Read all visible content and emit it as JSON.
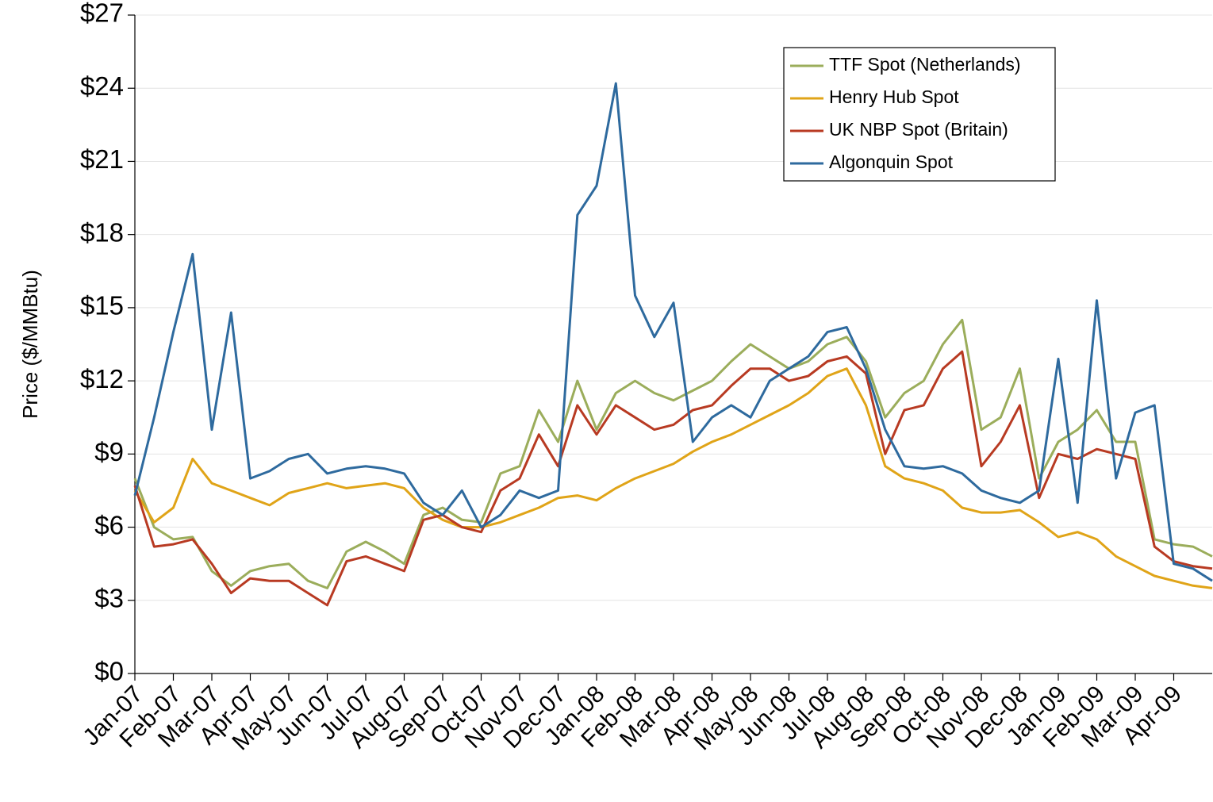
{
  "chart_data": {
    "type": "line",
    "y_label": "Price ($/MMBtu)",
    "x": [
      0,
      0.5,
      1,
      1.5,
      2,
      2.5,
      3,
      3.5,
      4,
      4.5,
      5,
      5.5,
      6,
      6.5,
      7,
      7.5,
      8,
      8.5,
      9,
      9.5,
      10,
      10.5,
      11,
      11.5,
      12,
      12.5,
      13,
      13.5,
      14,
      14.5,
      15,
      15.5,
      16,
      16.5,
      17,
      17.5,
      18,
      18.5,
      19,
      19.5,
      20,
      20.5,
      21,
      21.5,
      22,
      22.5,
      23,
      23.5,
      24,
      24.5,
      25,
      25.5,
      26,
      26.5,
      27,
      27.5,
      28
    ],
    "xlim": [
      0,
      28
    ],
    "xticks": [
      {
        "value": 0,
        "label": "Jan-07"
      },
      {
        "value": 1,
        "label": "Feb-07"
      },
      {
        "value": 2,
        "label": "Mar-07"
      },
      {
        "value": 3,
        "label": "Apr-07"
      },
      {
        "value": 4,
        "label": "May-07"
      },
      {
        "value": 5,
        "label": "Jun-07"
      },
      {
        "value": 6,
        "label": "Jul-07"
      },
      {
        "value": 7,
        "label": "Aug-07"
      },
      {
        "value": 8,
        "label": "Sep-07"
      },
      {
        "value": 9,
        "label": "Oct-07"
      },
      {
        "value": 10,
        "label": "Nov-07"
      },
      {
        "value": 11,
        "label": "Dec-07"
      },
      {
        "value": 12,
        "label": "Jan-08"
      },
      {
        "value": 13,
        "label": "Feb-08"
      },
      {
        "value": 14,
        "label": "Mar-08"
      },
      {
        "value": 15,
        "label": "Apr-08"
      },
      {
        "value": 16,
        "label": "May-08"
      },
      {
        "value": 17,
        "label": "Jun-08"
      },
      {
        "value": 18,
        "label": "Jul-08"
      },
      {
        "value": 19,
        "label": "Aug-08"
      },
      {
        "value": 20,
        "label": "Sep-08"
      },
      {
        "value": 21,
        "label": "Oct-08"
      },
      {
        "value": 22,
        "label": "Nov-08"
      },
      {
        "value": 23,
        "label": "Dec-08"
      },
      {
        "value": 24,
        "label": "Jan-09"
      },
      {
        "value": 25,
        "label": "Feb-09"
      },
      {
        "value": 26,
        "label": "Mar-09"
      },
      {
        "value": 27,
        "label": "Apr-09"
      }
    ],
    "ylim": [
      0,
      27
    ],
    "yticks": [
      {
        "value": 0,
        "label": "$0"
      },
      {
        "value": 3,
        "label": "$3"
      },
      {
        "value": 6,
        "label": "$6"
      },
      {
        "value": 9,
        "label": "$9"
      },
      {
        "value": 12,
        "label": "$12"
      },
      {
        "value": 15,
        "label": "$15"
      },
      {
        "value": 18,
        "label": "$18"
      },
      {
        "value": 21,
        "label": "$21"
      },
      {
        "value": 24,
        "label": "$24"
      },
      {
        "value": 27,
        "label": "$27"
      }
    ],
    "grid": true,
    "legend": "upper right",
    "series": [
      {
        "name": "TTF Spot (Netherlands)",
        "color": "#9bad5b",
        "values": [
          8.0,
          6.0,
          5.5,
          5.6,
          4.2,
          3.6,
          4.2,
          4.4,
          4.5,
          3.8,
          3.5,
          5.0,
          5.4,
          5.0,
          4.5,
          6.5,
          6.8,
          6.3,
          6.2,
          8.2,
          8.5,
          10.8,
          9.5,
          12.0,
          10.0,
          11.5,
          12.0,
          11.5,
          11.2,
          11.6,
          12.0,
          12.8,
          13.5,
          13.0,
          12.5,
          12.8,
          13.5,
          13.8,
          12.8,
          10.5,
          11.5,
          12.0,
          13.5,
          14.5,
          10.0,
          10.5,
          12.5,
          8.0,
          9.5,
          10.0,
          10.8,
          9.5,
          9.5,
          5.5,
          5.3,
          5.2,
          4.8
        ]
      },
      {
        "name": "Henry Hub Spot",
        "color": "#e0a418",
        "values": [
          7.5,
          6.2,
          6.8,
          8.8,
          7.8,
          7.5,
          7.2,
          6.9,
          7.4,
          7.6,
          7.8,
          7.6,
          7.7,
          7.8,
          7.6,
          6.8,
          6.3,
          6.0,
          6.0,
          6.2,
          6.5,
          6.8,
          7.2,
          7.3,
          7.1,
          7.6,
          8.0,
          8.3,
          8.6,
          9.1,
          9.5,
          9.8,
          10.2,
          10.6,
          11.0,
          11.5,
          12.2,
          12.5,
          11.0,
          8.5,
          8.0,
          7.8,
          7.5,
          6.8,
          6.6,
          6.6,
          6.7,
          6.2,
          5.6,
          5.8,
          5.5,
          4.8,
          4.4,
          4.0,
          3.8,
          3.6,
          3.5
        ]
      },
      {
        "name": "UK NBP Spot (Britain)",
        "color": "#b83a22",
        "values": [
          7.7,
          5.2,
          5.3,
          5.5,
          4.5,
          3.3,
          3.9,
          3.8,
          3.8,
          3.3,
          2.8,
          4.6,
          4.8,
          4.5,
          4.2,
          6.3,
          6.5,
          6.0,
          5.8,
          7.5,
          8.0,
          9.8,
          8.5,
          11.0,
          9.8,
          11.0,
          10.5,
          10.0,
          10.2,
          10.8,
          11.0,
          11.8,
          12.5,
          12.5,
          12.0,
          12.2,
          12.8,
          13.0,
          12.3,
          9.0,
          10.8,
          11.0,
          12.5,
          13.2,
          8.5,
          9.5,
          11.0,
          7.2,
          9.0,
          8.8,
          9.2,
          9.0,
          8.8,
          5.2,
          4.6,
          4.4,
          4.3
        ]
      },
      {
        "name": "Algonquin Spot",
        "color": "#2e6a9e",
        "values": [
          7.3,
          10.5,
          14.0,
          17.2,
          10.0,
          14.8,
          8.0,
          8.3,
          8.8,
          9.0,
          8.2,
          8.4,
          8.5,
          8.4,
          8.2,
          7.0,
          6.5,
          7.5,
          6.0,
          6.5,
          7.5,
          7.2,
          7.5,
          18.8,
          20.0,
          24.2,
          15.5,
          13.8,
          15.2,
          9.5,
          10.5,
          11.0,
          10.5,
          12.0,
          12.5,
          13.0,
          14.0,
          14.2,
          12.5,
          10.0,
          8.5,
          8.4,
          8.5,
          8.2,
          7.5,
          7.2,
          7.0,
          7.5,
          12.9,
          7.0,
          15.3,
          8.0,
          10.7,
          11.0,
          4.5,
          4.3,
          3.8
        ]
      }
    ]
  }
}
